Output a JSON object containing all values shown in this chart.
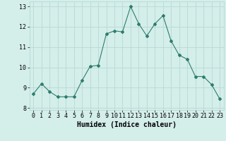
{
  "x": [
    0,
    1,
    2,
    3,
    4,
    5,
    6,
    7,
    8,
    9,
    10,
    11,
    12,
    13,
    14,
    15,
    16,
    17,
    18,
    19,
    20,
    21,
    22,
    23
  ],
  "y": [
    8.7,
    9.2,
    8.8,
    8.55,
    8.55,
    8.55,
    9.35,
    10.05,
    10.1,
    11.65,
    11.8,
    11.75,
    13.0,
    12.15,
    11.55,
    12.15,
    12.55,
    11.3,
    10.6,
    10.4,
    9.55,
    9.55,
    9.15,
    8.45
  ],
  "line_color": "#2e7d6e",
  "marker": "D",
  "markersize": 2.0,
  "linewidth": 0.8,
  "bg_color": "#d4eeea",
  "grid_color": "#b8d8d4",
  "xlabel": "Humidex (Indice chaleur)",
  "xlim": [
    -0.5,
    23.5
  ],
  "ylim": [
    7.9,
    13.25
  ],
  "yticks": [
    8,
    9,
    10,
    11,
    12,
    13
  ],
  "xticks": [
    0,
    1,
    2,
    3,
    4,
    5,
    6,
    7,
    8,
    9,
    10,
    11,
    12,
    13,
    14,
    15,
    16,
    17,
    18,
    19,
    20,
    21,
    22,
    23
  ],
  "xlabel_fontsize": 7.0,
  "tick_fontsize": 6.0
}
